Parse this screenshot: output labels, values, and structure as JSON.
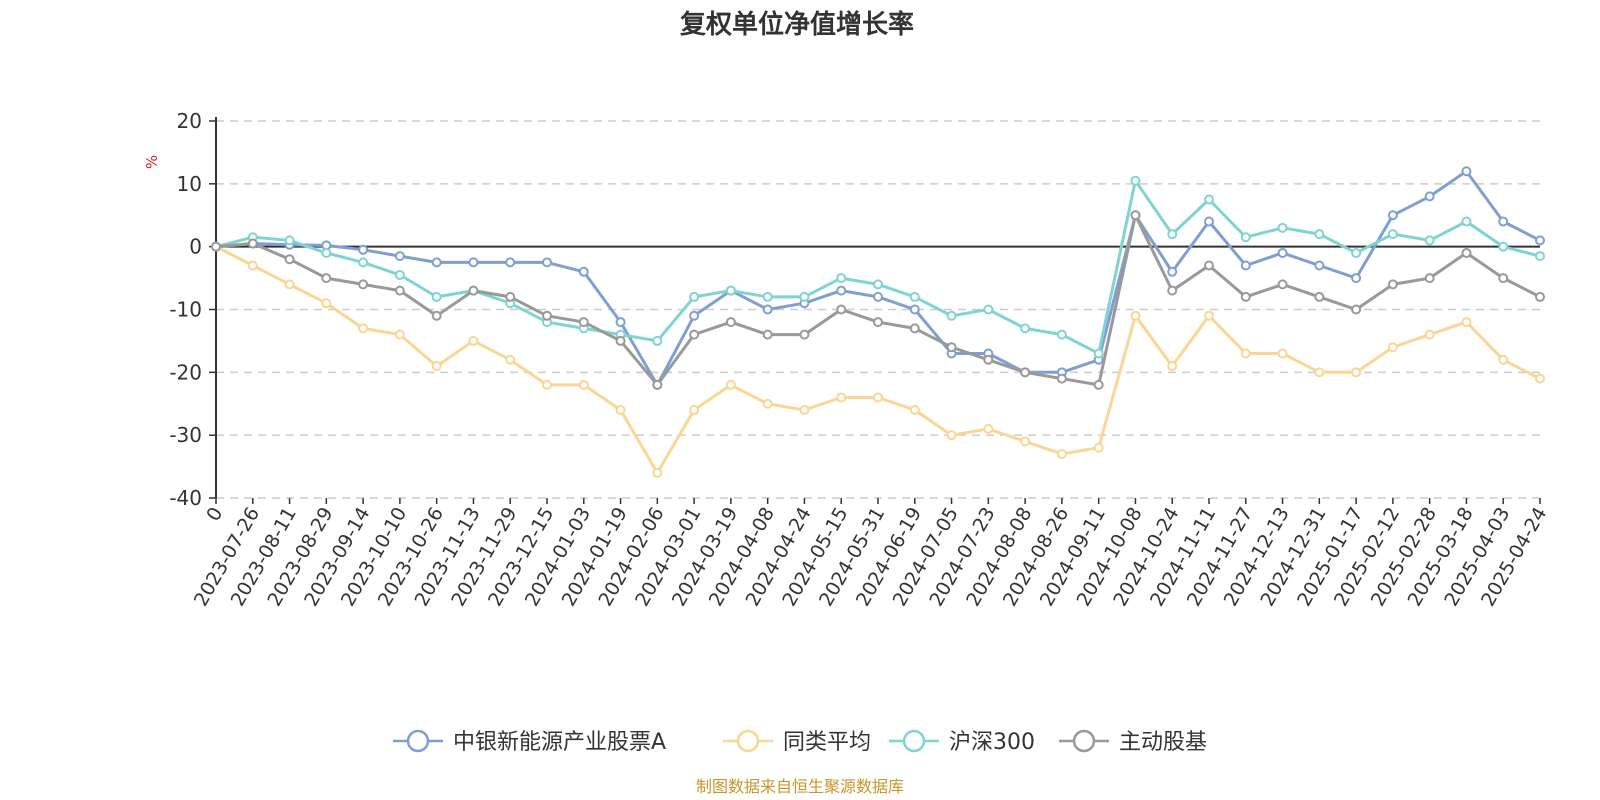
{
  "chart_data": {
    "type": "line",
    "title": "复权单位净值增长率",
    "ylabel": "%",
    "ylim": [
      -40,
      20
    ],
    "yticks": [
      "20",
      "10",
      "0",
      "-10",
      "-20",
      "-30",
      "-40"
    ],
    "xticks": [
      "0",
      "2023-07-26",
      "2023-08-11",
      "2023-08-29",
      "2023-09-14",
      "2023-10-10",
      "2023-10-26",
      "2023-11-13",
      "2023-11-29",
      "2023-12-15",
      "2024-01-03",
      "2024-01-19",
      "2024-02-06",
      "2024-03-01",
      "2024-03-19",
      "2024-04-08",
      "2024-04-24",
      "2024-05-15",
      "2024-05-31",
      "2024-06-19",
      "2024-07-05",
      "2024-07-23",
      "2024-08-08",
      "2024-08-26",
      "2024-09-11",
      "2024-10-08",
      "2024-10-24",
      "2024-11-11",
      "2024-11-27",
      "2024-12-13",
      "2024-12-31",
      "2025-01-17",
      "2025-02-12",
      "2025-02-28",
      "2025-03-18",
      "2025-04-03",
      "2025-04-24"
    ],
    "series": [
      {
        "name": "中银新能源产业股票A",
        "color": "#7f9fd4",
        "values": [
          0,
          0.5,
          0.3,
          0.2,
          -0.5,
          -1.5,
          -2.5,
          -2.5,
          -2.5,
          -2.5,
          -4,
          -12,
          -22,
          -11,
          -7,
          -10,
          -9,
          -7,
          -8,
          -10,
          -17,
          -17,
          -20,
          -20,
          -18,
          5,
          -4,
          4,
          -3,
          -1,
          -3,
          -5,
          5,
          8,
          12,
          4,
          1
        ]
      },
      {
        "name": "同类平均",
        "color": "#fbd593",
        "values": [
          0,
          -3,
          -6,
          -9,
          -13,
          -14,
          -19,
          -15,
          -18,
          -22,
          -22,
          -26,
          -36,
          -26,
          -22,
          -25,
          -26,
          -24,
          -24,
          -26,
          -30,
          -29,
          -31,
          -33,
          -32,
          -11,
          -19,
          -11,
          -17,
          -17,
          -20,
          -20,
          -16,
          -14,
          -12,
          -18,
          -21
        ]
      },
      {
        "name": "沪深300",
        "color": "#7fd4d0",
        "values": [
          0,
          1.5,
          1,
          -1,
          -2.5,
          -4.5,
          -8,
          -7,
          -9,
          -12,
          -13,
          -14,
          -15,
          -8,
          -7,
          -8,
          -8,
          -5,
          -6,
          -8,
          -11,
          -10,
          -13,
          -14,
          -17,
          10.5,
          2,
          7.5,
          1.5,
          3,
          2,
          -1,
          2,
          1,
          4,
          0,
          -1.5
        ]
      },
      {
        "name": "主动股基",
        "color": "#999999",
        "values": [
          0,
          0.5,
          -2,
          -5,
          -6,
          -7,
          -11,
          -7,
          -8,
          -11,
          -12,
          -15,
          -22,
          -14,
          -12,
          -14,
          -14,
          -10,
          -12,
          -13,
          -16,
          -18,
          -20,
          -21,
          -22,
          5,
          -7,
          -3,
          -8,
          -6,
          -8,
          -10,
          -6,
          -5,
          -1,
          -5,
          -8
        ]
      }
    ]
  },
  "source_text": "制图数据来自恒生聚源数据库"
}
